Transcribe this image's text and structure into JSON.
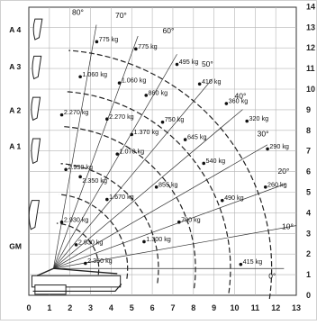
{
  "diagram": {
    "x_ticks": [
      "0",
      "1",
      "2",
      "3",
      "4",
      "5",
      "6",
      "7",
      "8",
      "9",
      "10",
      "11",
      "12",
      "13"
    ],
    "y_ticks": [
      "0",
      "1",
      "2",
      "3",
      "4",
      "5",
      "6",
      "7",
      "8",
      "9",
      "10",
      "11",
      "12",
      "13",
      "14"
    ],
    "boom_labels": [
      "GM",
      "A 1",
      "A 2",
      "A 3",
      "A 4"
    ],
    "angle_labels": [
      "80°",
      "70°",
      "60°",
      "50°",
      "40°",
      "30°",
      "20°",
      "10°",
      "0°"
    ],
    "loads": [
      {
        "text": "775 kg"
      },
      {
        "text": "775 kg"
      },
      {
        "text": "495 kg"
      },
      {
        "text": "1.060 kg"
      },
      {
        "text": "1.060 kg"
      },
      {
        "text": "410 kg"
      },
      {
        "text": "860 kg"
      },
      {
        "text": "360 kg"
      },
      {
        "text": "2.270 kg"
      },
      {
        "text": "2.270 kg"
      },
      {
        "text": "750 kg"
      },
      {
        "text": "320 kg"
      },
      {
        "text": "1.370 kg"
      },
      {
        "text": "645 kg"
      },
      {
        "text": "290 kg"
      },
      {
        "text": "1.070 kg"
      },
      {
        "text": "540 kg"
      },
      {
        "text": "2.930 kg"
      },
      {
        "text": "2.350 kg"
      },
      {
        "text": "855 kg"
      },
      {
        "text": "260 kg"
      },
      {
        "text": "1.670 kg"
      },
      {
        "text": "490 kg"
      },
      {
        "text": "2.930 kg"
      },
      {
        "text": "700 kg"
      },
      {
        "text": "2.930 kg"
      },
      {
        "text": "1.300 kg"
      },
      {
        "text": "2.350 kg"
      },
      {
        "text": "415 kg"
      }
    ]
  }
}
